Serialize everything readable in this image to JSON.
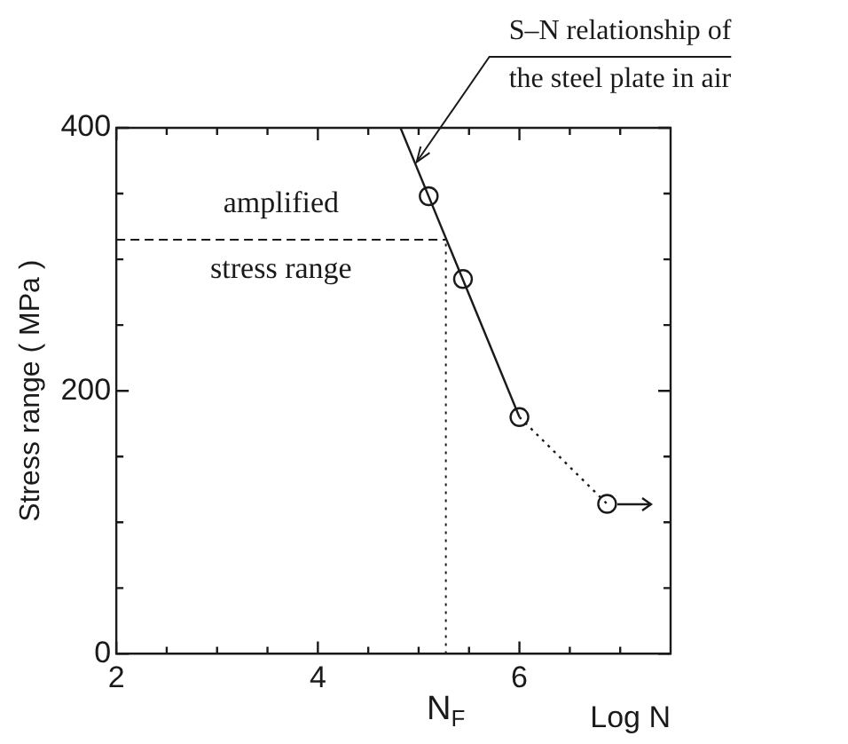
{
  "chart_data": {
    "type": "line",
    "xlabel": "Log N",
    "ylabel": "Stress range ( MPa )",
    "xlim": [
      2,
      7.5
    ],
    "xticks": [
      2,
      {
        "value": 2.5,
        "label": null
      },
      {
        "value": 3,
        "label": null
      },
      {
        "value": 3.5,
        "label": null
      },
      4,
      {
        "value": 4.5,
        "label": null
      },
      {
        "value": 5,
        "label": null
      },
      {
        "value": 5.5,
        "label": null
      },
      6,
      {
        "value": 6.5,
        "label": null
      },
      {
        "value": 7,
        "label": null
      }
    ],
    "ylim": [
      0,
      400
    ],
    "yticks": [
      0,
      {
        "value": 50,
        "label": null
      },
      {
        "value": 100,
        "label": null
      },
      {
        "value": 150,
        "label": null
      },
      200,
      {
        "value": 250,
        "label": null
      },
      {
        "value": 300,
        "label": null
      },
      {
        "value": 350,
        "label": null
      },
      400
    ],
    "grid": false,
    "legend": false,
    "series": [
      {
        "x": [
          4.82,
          6.0
        ],
        "values": [
          400,
          180
        ],
        "color": "#1a1a1a",
        "marker": "none",
        "line_style": "solid"
      },
      {
        "x": [
          6.0,
          6.87
        ],
        "values": [
          180,
          114
        ],
        "color": "#1a1a1a",
        "marker": "none",
        "line_style": "dotted"
      },
      {
        "type": "scatter",
        "x": [
          5.1,
          5.44,
          6.0,
          6.87
        ],
        "values": [
          348,
          285,
          180,
          114
        ],
        "color": "#1a1a1a",
        "marker": "circle"
      }
    ],
    "ref_lines": [
      {
        "axis": "y",
        "value": 315,
        "line_style": "dashed",
        "color": "#1a1a1a"
      },
      {
        "axis": "x",
        "value": 5.27,
        "label": "N$_{F}$",
        "line_style": "dotted",
        "color": "#1a1a1a"
      }
    ],
    "annotations": [
      "amplified",
      "stress range",
      {
        "text": "S–N relationship of the steel plate in air",
        "x": 4.98,
        "y": 374
      }
    ]
  }
}
